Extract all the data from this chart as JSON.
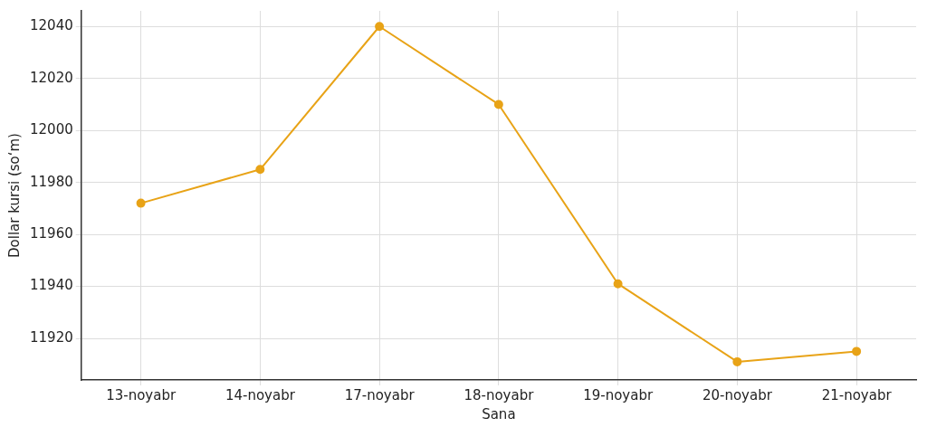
{
  "chart_data": {
    "type": "line",
    "xlabel": "Sana",
    "ylabel": "Dollar kursi (so‘m)",
    "categories": [
      "13-noyabr",
      "14-noyabr",
      "17-noyabr",
      "18-noyabr",
      "19-noyabr",
      "20-noyabr",
      "21-noyabr"
    ],
    "series": [
      {
        "color": "#e8a317",
        "values": [
          11972,
          11985,
          12040,
          12010,
          11941,
          11911,
          11915
        ]
      }
    ],
    "ylim": [
      11904,
      12046
    ],
    "yticks": [
      11920,
      11940,
      11960,
      11980,
      12000,
      12020,
      12040
    ],
    "grid": true,
    "legend": false,
    "marker": "circle",
    "line_style": "solid"
  }
}
